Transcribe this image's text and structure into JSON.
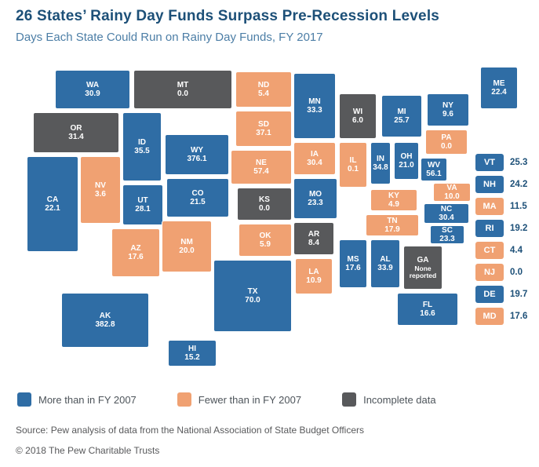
{
  "header": {
    "title": "26 States’ Rainy Day Funds Surpass Pre-Recession Levels",
    "subtitle": "Days Each State Could Run on Rainy Day Funds, FY 2017"
  },
  "colors": {
    "more": "#2f6da5",
    "fewer": "#f0a172",
    "incomplete": "#58595b"
  },
  "legend": [
    {
      "category": "more",
      "label": "More than in FY 2007"
    },
    {
      "category": "fewer",
      "label": "Fewer than in FY 2007"
    },
    {
      "category": "incomplete",
      "label": "Incomplete data"
    }
  ],
  "chart_data": {
    "type": "choropleth-map",
    "title": "26 States’ Rainy Day Funds Surpass Pre-Recession Levels",
    "subtitle": "Days Each State Could Run on Rainy Day Funds, FY 2017",
    "unit": "days",
    "legend_position": "bottom",
    "categories": {
      "more": "More than in FY 2007",
      "fewer": "Fewer than in FY 2007",
      "incomplete": "Incomplete data"
    },
    "states": [
      {
        "abbr": "WA",
        "value": "30.9",
        "category": "more"
      },
      {
        "abbr": "OR",
        "value": "31.4",
        "category": "incomplete"
      },
      {
        "abbr": "CA",
        "value": "22.1",
        "category": "more"
      },
      {
        "abbr": "NV",
        "value": "3.6",
        "category": "fewer"
      },
      {
        "abbr": "ID",
        "value": "35.5",
        "category": "more"
      },
      {
        "abbr": "MT",
        "value": "0.0",
        "category": "incomplete"
      },
      {
        "abbr": "WY",
        "value": "376.1",
        "category": "more"
      },
      {
        "abbr": "UT",
        "value": "28.1",
        "category": "more"
      },
      {
        "abbr": "CO",
        "value": "21.5",
        "category": "more"
      },
      {
        "abbr": "AZ",
        "value": "17.6",
        "category": "fewer"
      },
      {
        "abbr": "NM",
        "value": "20.0",
        "category": "fewer"
      },
      {
        "abbr": "ND",
        "value": "5.4",
        "category": "fewer"
      },
      {
        "abbr": "SD",
        "value": "37.1",
        "category": "fewer"
      },
      {
        "abbr": "NE",
        "value": "57.4",
        "category": "fewer"
      },
      {
        "abbr": "KS",
        "value": "0.0",
        "category": "incomplete"
      },
      {
        "abbr": "OK",
        "value": "5.9",
        "category": "fewer"
      },
      {
        "abbr": "TX",
        "value": "70.0",
        "category": "more"
      },
      {
        "abbr": "MN",
        "value": "33.3",
        "category": "more"
      },
      {
        "abbr": "IA",
        "value": "30.4",
        "category": "fewer"
      },
      {
        "abbr": "MO",
        "value": "23.3",
        "category": "more"
      },
      {
        "abbr": "AR",
        "value": "8.4",
        "category": "incomplete"
      },
      {
        "abbr": "LA",
        "value": "10.9",
        "category": "fewer"
      },
      {
        "abbr": "WI",
        "value": "6.0",
        "category": "incomplete"
      },
      {
        "abbr": "IL",
        "value": "0.1",
        "category": "fewer"
      },
      {
        "abbr": "MI",
        "value": "25.7",
        "category": "more"
      },
      {
        "abbr": "IN",
        "value": "34.8",
        "category": "more"
      },
      {
        "abbr": "OH",
        "value": "21.0",
        "category": "more"
      },
      {
        "abbr": "KY",
        "value": "4.9",
        "category": "fewer"
      },
      {
        "abbr": "TN",
        "value": "17.9",
        "category": "fewer"
      },
      {
        "abbr": "MS",
        "value": "17.6",
        "category": "more"
      },
      {
        "abbr": "AL",
        "value": "33.9",
        "category": "more"
      },
      {
        "abbr": "GA",
        "value": "None reported",
        "category": "incomplete"
      },
      {
        "abbr": "FL",
        "value": "16.6",
        "category": "more"
      },
      {
        "abbr": "SC",
        "value": "23.3",
        "category": "more"
      },
      {
        "abbr": "NC",
        "value": "30.4",
        "category": "more"
      },
      {
        "abbr": "VA",
        "value": "10.0",
        "category": "fewer"
      },
      {
        "abbr": "WV",
        "value": "56.1",
        "category": "more"
      },
      {
        "abbr": "PA",
        "value": "0.0",
        "category": "fewer"
      },
      {
        "abbr": "NY",
        "value": "9.6",
        "category": "more"
      },
      {
        "abbr": "ME",
        "value": "22.4",
        "category": "more"
      },
      {
        "abbr": "AK",
        "value": "382.8",
        "category": "more"
      },
      {
        "abbr": "HI",
        "value": "15.2",
        "category": "more"
      }
    ],
    "callout_states": [
      {
        "abbr": "VT",
        "value": "25.3",
        "category": "more"
      },
      {
        "abbr": "NH",
        "value": "24.2",
        "category": "more"
      },
      {
        "abbr": "MA",
        "value": "11.5",
        "category": "fewer"
      },
      {
        "abbr": "RI",
        "value": "19.2",
        "category": "more"
      },
      {
        "abbr": "CT",
        "value": "4.4",
        "category": "fewer"
      },
      {
        "abbr": "NJ",
        "value": "0.0",
        "category": "fewer"
      },
      {
        "abbr": "DE",
        "value": "19.7",
        "category": "more"
      },
      {
        "abbr": "MD",
        "value": "17.6",
        "category": "fewer"
      }
    ]
  },
  "footer": {
    "source": "Source: Pew analysis of data from the National Association of State Budget Officers",
    "copyright": "© 2018 The Pew Charitable Trusts"
  }
}
